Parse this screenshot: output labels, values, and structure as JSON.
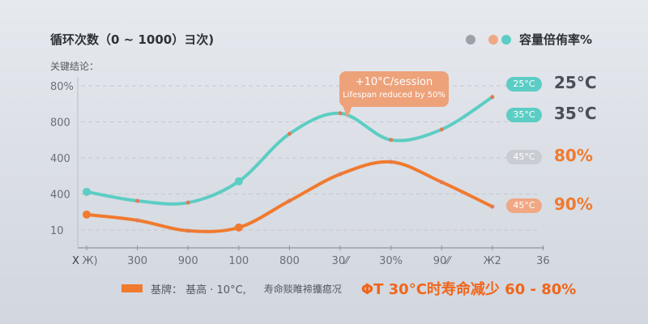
{
  "title": "循环次数（0 ~ 1000）ヨ次)",
  "subtitle": "关键结论：",
  "legend": {
    "label": "容量倍侑率%",
    "colors": [
      "#9ea2a8",
      "#f0a884",
      "#5ccdc4"
    ]
  },
  "callout": {
    "line1": "+10°C/session",
    "line2": "Lifespan reduced by 50%"
  },
  "right_labels": [
    {
      "pill": "25°C",
      "value": "25°C",
      "pill_color": "#5ccdc4",
      "value_color": "#4a4e55"
    },
    {
      "pill": "35°C",
      "value": "35°C",
      "pill_color": "#5ccdc4",
      "value_color": "#4a4e55"
    },
    {
      "pill": "45°C",
      "value": "80%",
      "pill_color": "#c9ccd2",
      "value_color": "#f07a2e"
    },
    {
      "pill": "45°C",
      "value": "90%",
      "pill_color": "#f0a884",
      "value_color": "#f07a2e"
    }
  ],
  "footer": {
    "legend_label": "基牌：  基高 · 10°C,",
    "note": "寿命赕睢褅攟癋况",
    "highlight": "ΦT 30°C时寿命减少 60 - 80%",
    "swatch_color": "#f07a2e",
    "highlight_color": "#f0661a"
  },
  "chart_data": {
    "type": "line",
    "xlabel": "X",
    "categories": [
      "Ж)",
      "300",
      "900",
      "100",
      "800",
      "30⁄⁄",
      "30%",
      "90⁄⁄",
      "Ж2",
      "36"
    ],
    "yticks": [
      "10",
      "400",
      "400",
      "800",
      "80%"
    ],
    "ylim": [
      -0.5,
      4.5
    ],
    "grid": true,
    "series": [
      {
        "color": "#5ccdc4",
        "values": [
          1.06,
          0.81,
          0.76,
          1.35,
          2.67,
          3.24,
          2.5,
          2.79,
          3.69,
          null
        ]
      },
      {
        "color": "#f07a2e",
        "values": [
          0.43,
          0.27,
          -0.02,
          0.07,
          0.81,
          1.55,
          1.89,
          1.33,
          0.65,
          null
        ]
      }
    ]
  }
}
